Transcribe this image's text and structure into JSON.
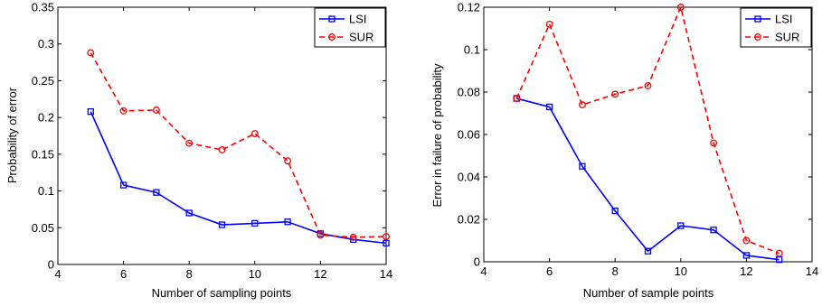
{
  "chart_data": [
    {
      "type": "line",
      "title": "",
      "xlabel": "Number of sampling points",
      "ylabel": "Probability of error",
      "xlim": [
        4,
        14
      ],
      "ylim": [
        0,
        0.35
      ],
      "xticks": [
        "4",
        "6",
        "8",
        "10",
        "12",
        "14"
      ],
      "yticks": [
        "0",
        "0.05",
        "0.1",
        "0.15",
        "0.2",
        "0.25",
        "0.3",
        "0.35"
      ],
      "legend_position": "top-right",
      "series": [
        {
          "name": "LSI",
          "color": "#0000ff",
          "line_style": "solid",
          "marker": "square",
          "x": [
            5,
            6,
            7,
            8,
            9,
            10,
            11,
            12,
            13,
            14
          ],
          "y": [
            0.208,
            0.108,
            0.098,
            0.07,
            0.054,
            0.056,
            0.058,
            0.042,
            0.034,
            0.029
          ]
        },
        {
          "name": "SUR",
          "color": "#ff0000",
          "line_style": "dashed",
          "marker": "circle",
          "x": [
            5,
            6,
            7,
            8,
            9,
            10,
            11,
            12,
            13,
            14
          ],
          "y": [
            0.288,
            0.209,
            0.21,
            0.165,
            0.156,
            0.178,
            0.141,
            0.04,
            0.037,
            0.038
          ]
        }
      ]
    },
    {
      "type": "line",
      "title": "",
      "xlabel": "Number of sample points",
      "ylabel": "Error in failure of probability",
      "xlim": [
        4,
        14
      ],
      "ylim": [
        0,
        0.12
      ],
      "xticks": [
        "4",
        "6",
        "8",
        "10",
        "12",
        "14"
      ],
      "yticks": [
        "0",
        "0.02",
        "0.04",
        "0.06",
        "0.08",
        "0.1",
        "0.12"
      ],
      "legend_position": "top-right",
      "series": [
        {
          "name": "LSI",
          "color": "#0000ff",
          "line_style": "solid",
          "marker": "square",
          "x": [
            5,
            6,
            7,
            8,
            9,
            10,
            11,
            12,
            13
          ],
          "y": [
            0.077,
            0.073,
            0.045,
            0.024,
            0.005,
            0.017,
            0.015,
            0.003,
            0.001
          ]
        },
        {
          "name": "SUR",
          "color": "#ff0000",
          "line_style": "dashed",
          "marker": "circle",
          "x": [
            5,
            6,
            7,
            8,
            9,
            10,
            11,
            12,
            13
          ],
          "y": [
            0.077,
            0.112,
            0.074,
            0.079,
            0.083,
            0.12,
            0.056,
            0.01,
            0.004
          ]
        }
      ]
    }
  ]
}
